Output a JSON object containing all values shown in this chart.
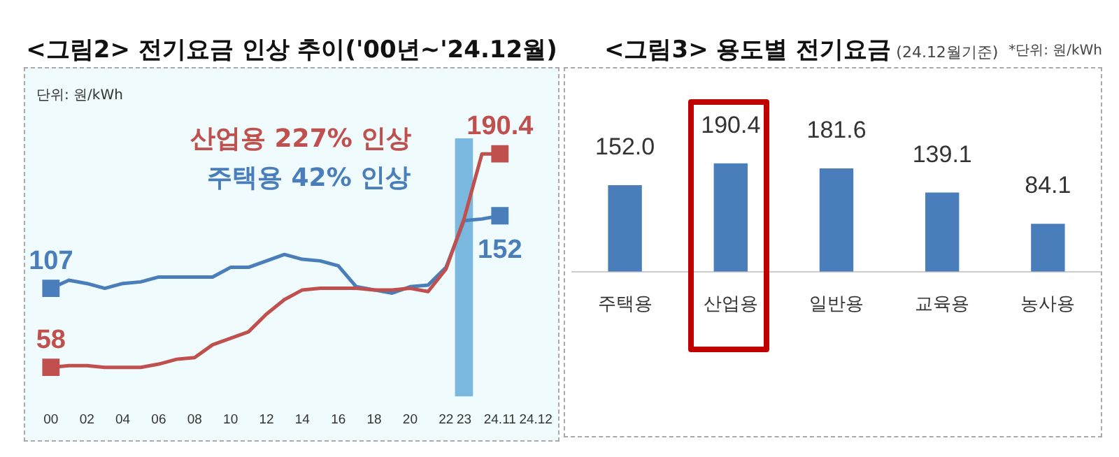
{
  "chart_data": [
    {
      "type": "line",
      "title": "<그림2> 전기요금 인상 추이('00년~'24.12월)",
      "categories": [
        "00",
        null,
        "02",
        null,
        "04",
        null,
        "06",
        null,
        "08",
        null,
        "10",
        null,
        "12",
        null,
        "14",
        null,
        "16",
        null,
        "18",
        null,
        "20",
        null,
        "22",
        "23",
        null,
        "24.11",
        null,
        "24.12"
      ],
      "series": [
        {
          "color": "#c0504d",
          "values": [
            58,
            59,
            59,
            58,
            58,
            58,
            60,
            63,
            64,
            72,
            76,
            80,
            91,
            100,
            106,
            107,
            107,
            107,
            106,
            106,
            107,
            105,
            119,
            150,
            190.4,
            190.4,
            null,
            null
          ],
          "value_labels": [
            "58",
            null,
            null,
            null,
            null,
            null,
            null,
            null,
            null,
            null,
            null,
            null,
            null,
            null,
            null,
            null,
            null,
            null,
            null,
            null,
            null,
            null,
            null,
            null,
            null,
            "190.4",
            null,
            null
          ]
        },
        {
          "color": "#4a7ebb",
          "values": [
            107,
            112,
            110,
            107,
            110,
            111,
            114,
            114,
            114,
            114,
            120,
            120,
            124,
            128,
            125,
            124,
            121,
            108,
            106,
            104,
            108,
            109,
            120,
            149,
            150,
            152,
            null,
            null
          ],
          "value_labels": [
            "107",
            null,
            null,
            null,
            null,
            null,
            null,
            null,
            null,
            null,
            null,
            null,
            null,
            null,
            null,
            null,
            null,
            null,
            null,
            null,
            null,
            null,
            null,
            null,
            null,
            "152",
            null,
            null
          ]
        }
      ],
      "tick_labels": "x",
      "grid": false,
      "legend": false,
      "bands": [
        {
          "axis": "x",
          "from": "23",
          "to": "23",
          "color": "#7ab8e0"
        }
      ],
      "annotations": [
        "단위: 원/kWh",
        "산업용 227% 인상",
        "주택용 42% 인상"
      ]
    },
    {
      "type": "bar",
      "title": "<그림3> 용도별 전기요금",
      "subtitle": "(24.12월기준)",
      "categories": [
        "주택용",
        "산업용",
        "일반용",
        "교육용",
        "농사용"
      ],
      "values": [
        152.0,
        190.4,
        181.6,
        139.1,
        84.1
      ],
      "value_labels": [
        "152.0",
        "190.4",
        "181.6",
        "139.1",
        "84.1"
      ],
      "color": "#4a7ebb",
      "tick_labels": "x",
      "grid": false,
      "legend": false,
      "annotations": [
        "*단위: 원/kWh"
      ]
    }
  ]
}
